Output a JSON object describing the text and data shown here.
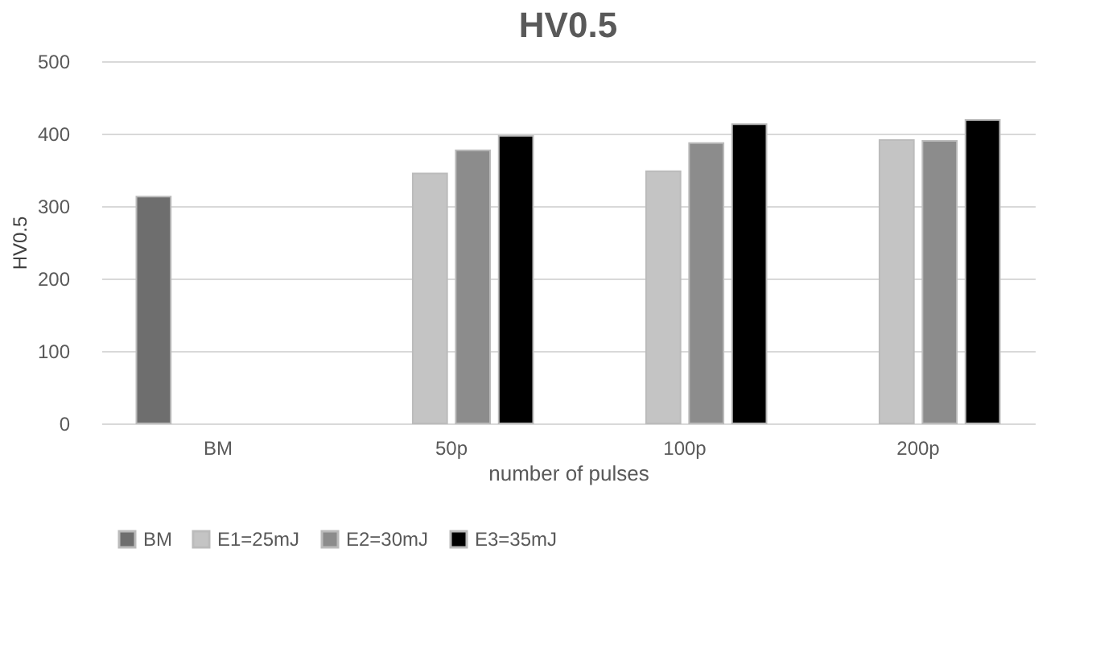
{
  "chart_data": {
    "type": "bar",
    "title": "HV0.5",
    "xlabel": "number of pulses",
    "ylabel": "HV0.5",
    "categories": [
      "BM",
      "50p",
      "100p",
      "200p"
    ],
    "series": [
      {
        "name": "BM",
        "color": "#6e6e6e",
        "values": [
          313,
          null,
          null,
          null
        ]
      },
      {
        "name": "E1=25mJ",
        "color": "#c4c4c4",
        "values": [
          null,
          345,
          348,
          391
        ]
      },
      {
        "name": "E2=30mJ",
        "color": "#8c8c8c",
        "values": [
          null,
          377,
          387,
          390
        ]
      },
      {
        "name": "E3=35mJ",
        "color": "#000000",
        "values": [
          null,
          397,
          413,
          419
        ]
      }
    ],
    "ylim": [
      0,
      500
    ],
    "yticks": [
      0,
      100,
      200,
      300,
      400,
      500
    ],
    "grid": "y",
    "legend": "bottom"
  }
}
